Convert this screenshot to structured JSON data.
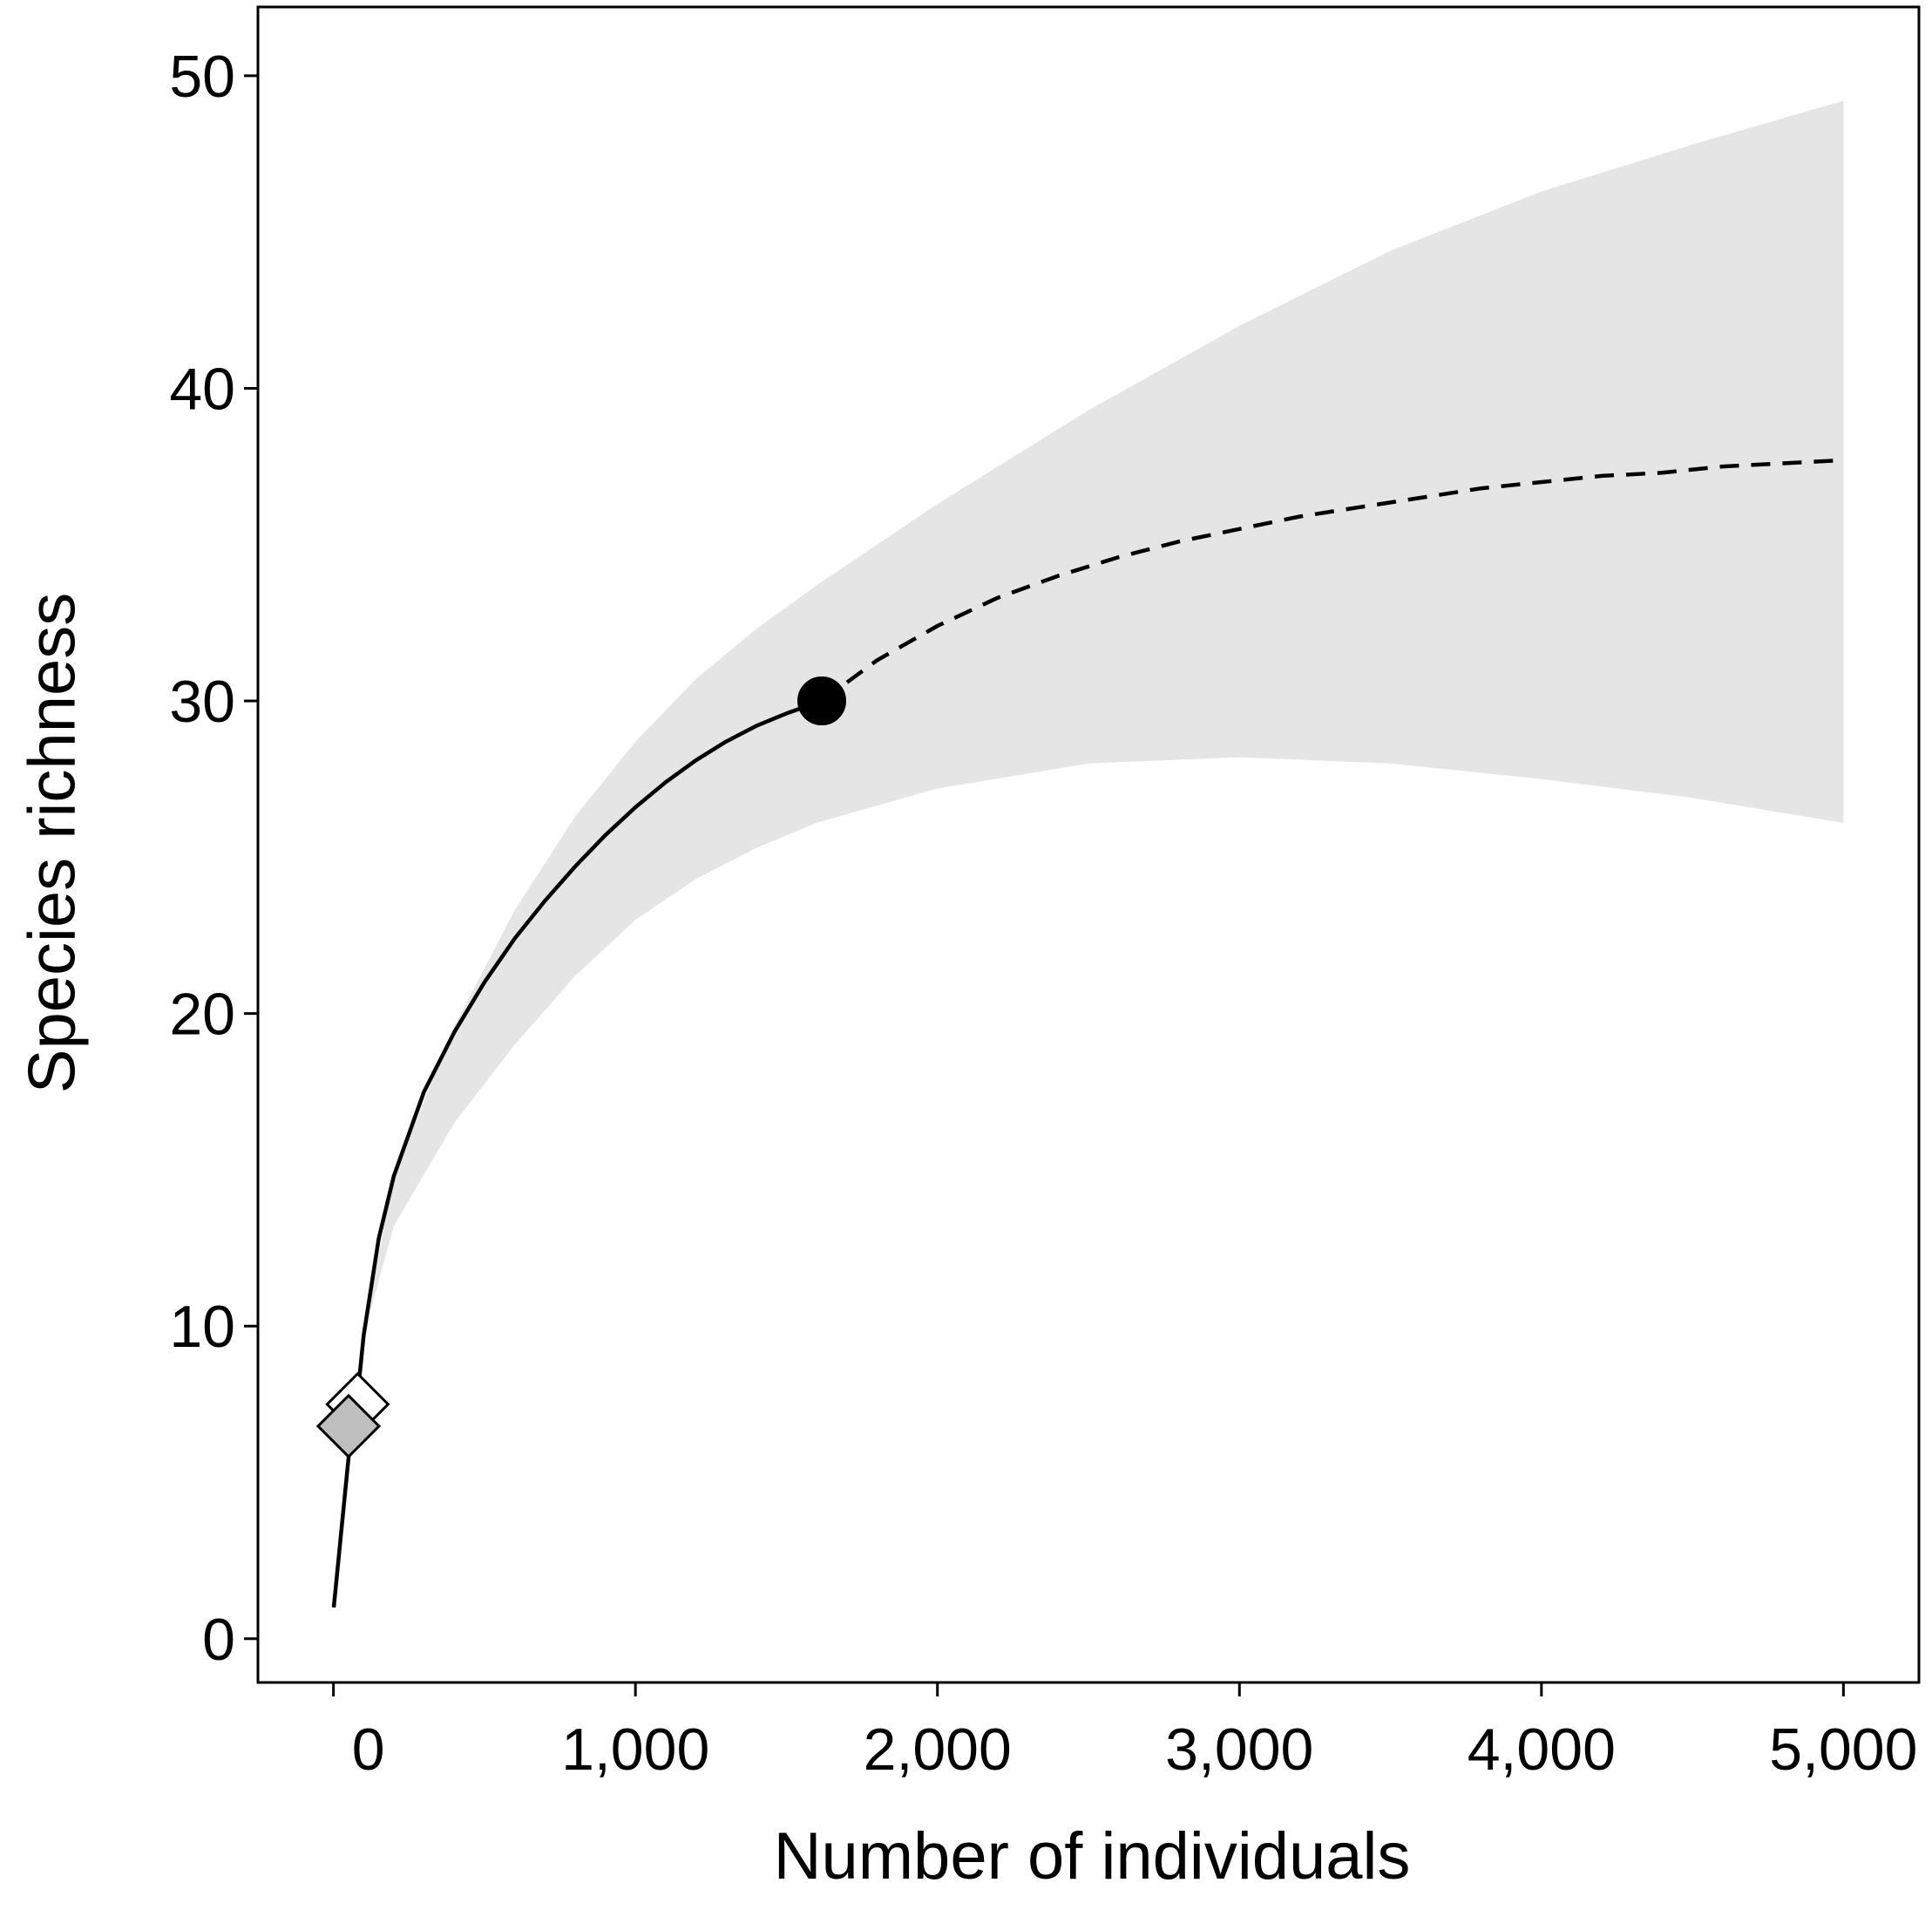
{
  "chart_data": {
    "type": "line",
    "title": "",
    "xlabel": "Number of individuals",
    "ylabel": "Species richness",
    "xlim": [
      -250,
      5250
    ],
    "ylim": [
      -1.4,
      52.2
    ],
    "xticks": [
      0,
      1000,
      2000,
      3000,
      4000,
      5000
    ],
    "xtick_labels": [
      "0",
      "1,000",
      "2,000",
      "3,000",
      "4,000",
      "5,000"
    ],
    "yticks": [
      0,
      10,
      20,
      30,
      40,
      50
    ],
    "ytick_labels": [
      "0",
      "10",
      "20",
      "30",
      "40",
      "50"
    ],
    "grid": false,
    "legend": "none",
    "series": [
      {
        "style": "solid",
        "x": [
          1,
          50,
          80,
          100,
          150,
          200,
          300,
          400,
          500,
          600,
          700,
          800,
          900,
          1000,
          1100,
          1200,
          1300,
          1400,
          1500,
          1617
        ],
        "y": [
          1.0,
          5.8,
          7.8,
          9.7,
          12.8,
          14.8,
          17.5,
          19.4,
          21.0,
          22.4,
          23.6,
          24.7,
          25.7,
          26.6,
          27.4,
          28.1,
          28.7,
          29.2,
          29.6,
          30.0
        ]
      },
      {
        "style": "dashed",
        "x": [
          1617,
          1800,
          2000,
          2200,
          2400,
          2600,
          2800,
          3000,
          3200,
          3400,
          3600,
          3800,
          4000,
          4200,
          4400,
          4600,
          4800,
          5000
        ],
        "y": [
          30.0,
          31.3,
          32.4,
          33.3,
          34.0,
          34.6,
          35.1,
          35.5,
          35.9,
          36.2,
          36.5,
          36.8,
          37.0,
          37.2,
          37.3,
          37.5,
          37.6,
          37.7
        ]
      }
    ],
    "confidence_band": {
      "color": "#e5e5e5",
      "x": [
        100,
        200,
        400,
        600,
        800,
        1000,
        1200,
        1400,
        1600,
        2000,
        2500,
        3000,
        3500,
        4000,
        4500,
        5000
      ],
      "lower": [
        9.7,
        13.2,
        16.5,
        19.0,
        21.2,
        23.0,
        24.3,
        25.3,
        26.1,
        27.2,
        28.0,
        28.2,
        28.0,
        27.5,
        26.9,
        26.1
      ],
      "upper": [
        9.7,
        14.8,
        19.6,
        23.3,
        26.3,
        28.7,
        30.7,
        32.3,
        33.7,
        36.3,
        39.3,
        42.0,
        44.4,
        46.3,
        47.8,
        49.2
      ]
    },
    "markers": [
      {
        "shape": "circle",
        "x": 1617,
        "y": 30.0,
        "fill": "#000000"
      },
      {
        "shape": "diamond",
        "x": 80,
        "y": 7.5,
        "fill": "#ffffff"
      },
      {
        "shape": "diamond",
        "x": 50,
        "y": 6.8,
        "fill": "#bfbfbf"
      }
    ]
  }
}
